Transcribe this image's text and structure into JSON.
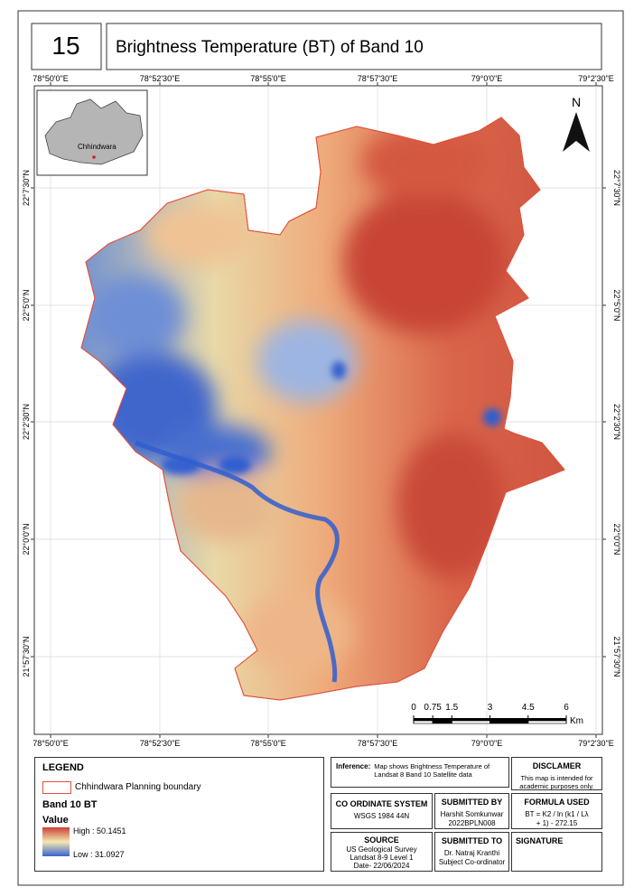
{
  "header": {
    "number": "15",
    "title": "Brightness Temperature (BT) of Band 10"
  },
  "map": {
    "longitude_labels": [
      "78°50'0\"E",
      "78°52'30\"E",
      "78°55'0\"E",
      "78°57'30\"E",
      "79°0'0\"E",
      "79°2'30\"E"
    ],
    "latitude_labels": [
      "22°7'30\"N",
      "22°5'0\"N",
      "22°2'30\"N",
      "22°0'0\"N",
      "21°57'30\"N"
    ],
    "inset_label": "Chhindwara",
    "north": "N",
    "scale": {
      "ticks": [
        0,
        0.75,
        1.5,
        3,
        4.5,
        6
      ],
      "unit": "Km"
    }
  },
  "legend": {
    "title": "LEGEND",
    "boundary": "Chhindwara Planning boundary",
    "layer": "Band 10 BT",
    "field": "Value",
    "high": "High : 50.1451",
    "low": "Low : 31.0927"
  },
  "inference": {
    "label": "Inference:",
    "text": "Map shows Brightness Temperature of Landsat 8 Band 10 Satellite data"
  },
  "disclaimer": {
    "title": "DISCLAMER",
    "text": "This map is intended for academic purposes only."
  },
  "coordinate_system": {
    "title": "CO ORDINATE SYSTEM",
    "text": "WSGS 1984 44N"
  },
  "submitted_by": {
    "title": "SUBMITTED BY",
    "lines": [
      "Harshit Somkunwar",
      "2022BPLN008"
    ]
  },
  "formula": {
    "title": "FORMULA USED",
    "text": "BT = K2 / ln (k1 / Lλ + 1) - 272.15"
  },
  "source": {
    "title": "SOURCE",
    "lines": [
      "US Geological Survey",
      "Landsat 8-9 Level 1",
      "Date- 22/06/2024"
    ]
  },
  "submitted_to": {
    "title": "SUBMITTED TO",
    "lines": [
      "Dr. Natraj Kranthi",
      "Subject Co-ordinator"
    ]
  },
  "signature": {
    "title": "SIGNATURE"
  }
}
